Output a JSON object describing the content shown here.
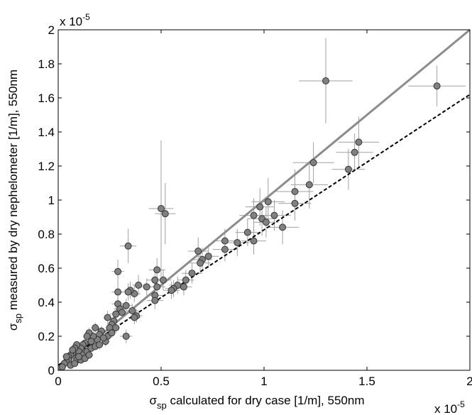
{
  "chart_data": {
    "type": "scatter",
    "xlabel": {
      "symbol": "σ",
      "sub": "sp",
      "text": " calculated for dry case [1/m], 550nm"
    },
    "ylabel": {
      "symbol": "σ",
      "sub": "sp",
      "text": " measured by dry nephelometer [1/m], 550nm"
    },
    "x_exponent": {
      "base": "x 10",
      "exp": "-5"
    },
    "y_exponent": {
      "base": "x 10",
      "exp": "-5"
    },
    "xlim": [
      0,
      2
    ],
    "ylim": [
      0,
      2
    ],
    "x_ticks": [
      "0",
      "0.5",
      "1",
      "1.5",
      "2"
    ],
    "y_ticks": [
      "0",
      "0.2",
      "0.4",
      "0.6",
      "0.8",
      "1",
      "1.2",
      "1.4",
      "1.6",
      "1.8",
      "2"
    ],
    "grid": false,
    "legend": "none",
    "colors": {
      "marker_fill": "#808080",
      "marker_edge": "#333333",
      "error_bar": "#a0a0a0",
      "one_to_one_line": "#8c8c8c",
      "fit_line": "#000000"
    },
    "lines": [
      {
        "style": "solid-gray",
        "x": [
          0,
          2
        ],
        "y": [
          0,
          2
        ]
      },
      {
        "style": "dashed-black",
        "x": [
          0,
          2
        ],
        "y": [
          0.03,
          1.62
        ]
      }
    ],
    "points": [
      [
        1.3,
        1.7,
        0.13,
        0.25
      ],
      [
        1.84,
        1.67,
        0.14,
        0.12
      ],
      [
        1.46,
        1.34,
        0.1,
        0.15
      ],
      [
        1.44,
        1.28,
        0.09,
        0.11
      ],
      [
        1.41,
        1.18,
        0.08,
        0.12
      ],
      [
        1.24,
        1.22,
        0.1,
        0.12
      ],
      [
        1.22,
        1.09,
        0.09,
        0.14
      ],
      [
        1.15,
        1.05,
        0.09,
        0.13
      ],
      [
        1.15,
        0.98,
        0.08,
        0.1
      ],
      [
        1.02,
        0.99,
        0.08,
        0.14
      ],
      [
        0.98,
        0.96,
        0.07,
        0.11
      ],
      [
        0.99,
        0.89,
        0.07,
        0.1
      ],
      [
        1.05,
        0.91,
        0.08,
        0.09
      ],
      [
        1.01,
        0.87,
        0.06,
        0.09
      ],
      [
        1.09,
        0.84,
        0.08,
        0.1
      ],
      [
        0.95,
        0.91,
        0.07,
        0.1
      ],
      [
        0.92,
        0.81,
        0.06,
        0.08
      ],
      [
        0.95,
        0.76,
        0.06,
        0.08
      ],
      [
        0.87,
        0.75,
        0.06,
        0.08
      ],
      [
        0.81,
        0.76,
        0.06,
        0.07
      ],
      [
        0.81,
        0.71,
        0.06,
        0.07
      ],
      [
        0.73,
        0.67,
        0.05,
        0.07
      ],
      [
        0.7,
        0.65,
        0.05,
        0.07
      ],
      [
        0.68,
        0.7,
        0.05,
        0.08
      ],
      [
        0.69,
        0.63,
        0.05,
        0.06
      ],
      [
        0.65,
        0.57,
        0.05,
        0.06
      ],
      [
        0.62,
        0.53,
        0.04,
        0.06
      ],
      [
        0.61,
        0.49,
        0.04,
        0.05
      ],
      [
        0.58,
        0.5,
        0.04,
        0.05
      ],
      [
        0.56,
        0.48,
        0.04,
        0.05
      ],
      [
        0.55,
        0.47,
        0.04,
        0.05
      ],
      [
        0.51,
        0.53,
        0.04,
        0.06
      ],
      [
        0.5,
        0.95,
        0.06,
        0.4
      ],
      [
        0.52,
        0.92,
        0.05,
        0.18
      ],
      [
        0.48,
        0.59,
        0.04,
        0.07
      ],
      [
        0.47,
        0.53,
        0.04,
        0.06
      ],
      [
        0.48,
        0.49,
        0.04,
        0.05
      ],
      [
        0.47,
        0.44,
        0.04,
        0.05
      ],
      [
        0.47,
        0.41,
        0.04,
        0.05
      ],
      [
        0.43,
        0.49,
        0.03,
        0.05
      ],
      [
        0.39,
        0.5,
        0.03,
        0.06
      ],
      [
        0.37,
        0.45,
        0.03,
        0.05
      ],
      [
        0.34,
        0.73,
        0.04,
        0.1
      ],
      [
        0.35,
        0.47,
        0.03,
        0.05
      ],
      [
        0.34,
        0.46,
        0.03,
        0.05
      ],
      [
        0.33,
        0.38,
        0.03,
        0.04
      ],
      [
        0.36,
        0.35,
        0.03,
        0.04
      ],
      [
        0.38,
        0.32,
        0.03,
        0.04
      ],
      [
        0.37,
        0.31,
        0.03,
        0.04
      ],
      [
        0.33,
        0.2,
        0.03,
        0.04
      ],
      [
        0.29,
        0.58,
        0.03,
        0.07
      ],
      [
        0.29,
        0.46,
        0.03,
        0.06
      ],
      [
        0.29,
        0.39,
        0.03,
        0.04
      ],
      [
        0.3,
        0.36,
        0.03,
        0.04
      ],
      [
        0.31,
        0.34,
        0.03,
        0.04
      ],
      [
        0.28,
        0.33,
        0.03,
        0.04
      ],
      [
        0.27,
        0.29,
        0.02,
        0.03
      ],
      [
        0.26,
        0.27,
        0.02,
        0.03
      ],
      [
        0.24,
        0.31,
        0.02,
        0.04
      ],
      [
        0.25,
        0.25,
        0.02,
        0.03
      ],
      [
        0.24,
        0.2,
        0.02,
        0.03
      ],
      [
        0.23,
        0.17,
        0.02,
        0.03
      ],
      [
        0.21,
        0.23,
        0.02,
        0.03
      ],
      [
        0.2,
        0.21,
        0.02,
        0.03
      ],
      [
        0.19,
        0.18,
        0.02,
        0.03
      ],
      [
        0.18,
        0.25,
        0.02,
        0.03
      ],
      [
        0.17,
        0.2,
        0.02,
        0.03
      ],
      [
        0.16,
        0.17,
        0.02,
        0.02
      ],
      [
        0.15,
        0.22,
        0.02,
        0.03
      ],
      [
        0.14,
        0.2,
        0.02,
        0.02
      ],
      [
        0.13,
        0.16,
        0.02,
        0.02
      ],
      [
        0.12,
        0.15,
        0.02,
        0.02
      ],
      [
        0.11,
        0.13,
        0.02,
        0.02
      ],
      [
        0.1,
        0.11,
        0.01,
        0.02
      ],
      [
        0.09,
        0.15,
        0.02,
        0.02
      ],
      [
        0.08,
        0.13,
        0.01,
        0.02
      ],
      [
        0.07,
        0.1,
        0.01,
        0.02
      ],
      [
        0.06,
        0.09,
        0.01,
        0.02
      ],
      [
        0.05,
        0.08,
        0.01,
        0.02
      ],
      [
        0.05,
        0.06,
        0.01,
        0.01
      ],
      [
        0.04,
        0.05,
        0.01,
        0.01
      ],
      [
        0.03,
        0.04,
        0.01,
        0.01
      ],
      [
        0.02,
        0.02,
        0.01,
        0.01
      ],
      [
        0.06,
        0.03,
        0.01,
        0.01
      ],
      [
        0.09,
        0.06,
        0.01,
        0.02
      ],
      [
        0.12,
        0.09,
        0.02,
        0.02
      ],
      [
        0.14,
        0.11,
        0.02,
        0.02
      ],
      [
        0.16,
        0.13,
        0.02,
        0.02
      ],
      [
        0.18,
        0.14,
        0.02,
        0.02
      ],
      [
        0.2,
        0.15,
        0.02,
        0.03
      ],
      [
        0.22,
        0.19,
        0.02,
        0.03
      ],
      [
        0.26,
        0.22,
        0.02,
        0.03
      ],
      [
        0.28,
        0.25,
        0.02,
        0.03
      ],
      [
        0.11,
        0.06,
        0.02,
        0.02
      ],
      [
        0.13,
        0.07,
        0.02,
        0.02
      ],
      [
        0.08,
        0.04,
        0.01,
        0.01
      ],
      [
        0.15,
        0.09,
        0.02,
        0.02
      ],
      [
        0.04,
        0.08,
        0.01,
        0.02
      ],
      [
        0.07,
        0.12,
        0.01,
        0.02
      ],
      [
        0.1,
        0.08,
        0.01,
        0.02
      ]
    ]
  }
}
